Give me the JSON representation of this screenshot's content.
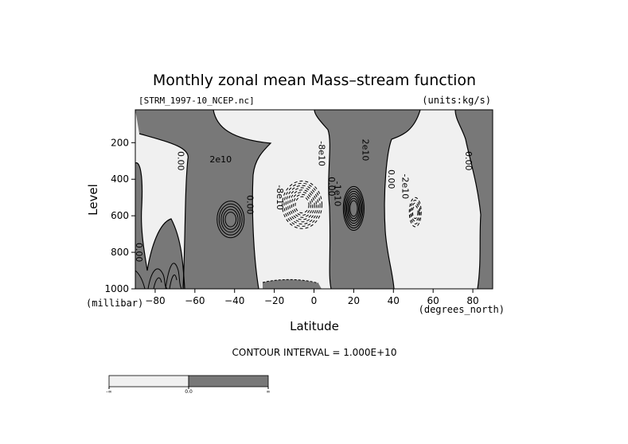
{
  "chart_data": {
    "type": "contour",
    "title": "Monthly zonal mean Mass–stream function",
    "subtitle_left": "[STRM_1997-10_NCEP.nc]",
    "subtitle_right": "(units:kg/s)",
    "xlabel": "Latitude",
    "ylabel": "Level",
    "x_unit": "(degrees_north)",
    "y_unit": "(millibar)",
    "xlim": [
      -90,
      90
    ],
    "ylim": [
      1000,
      20
    ],
    "x_ticks": [
      -80,
      -60,
      -40,
      -20,
      0,
      20,
      40,
      60,
      80
    ],
    "x_tick_labels": [
      "−80",
      "−60",
      "−40",
      "−20",
      "0",
      "20",
      "40",
      "60",
      "80"
    ],
    "y_ticks": [
      200,
      400,
      600,
      800,
      1000
    ],
    "y_tick_labels": [
      "200",
      "400",
      "600",
      "800",
      "1000"
    ],
    "contour_interval_text": "CONTOUR INTERVAL = 1.000E+10",
    "contour_interval": 10000000000.0,
    "positive_fill_color": "#787878",
    "negative_fill_color": "#f0f0f0",
    "colorbar_labels": [
      "-∞",
      "0.0",
      "∞"
    ],
    "contour_labels": [
      {
        "text": "0.00",
        "lat": -67,
        "lev": 300
      },
      {
        "text": "2e10",
        "lat": -47,
        "lev": 290
      },
      {
        "text": "0.00",
        "lat": -32,
        "lev": 540
      },
      {
        "text": "-8e10",
        "lat": -17,
        "lev": 500
      },
      {
        "text": "-8e10",
        "lat": 4,
        "lev": 260
      },
      {
        "text": "0.00",
        "lat": 9,
        "lev": 440
      },
      {
        "text": "-1e10",
        "lat": 12,
        "lev": 480
      },
      {
        "text": "2e10",
        "lat": 26,
        "lev": 240
      },
      {
        "text": "0.00",
        "lat": 39,
        "lev": 400
      },
      {
        "text": "-2e10",
        "lat": 46,
        "lev": 440
      },
      {
        "text": "0.00",
        "lat": 78,
        "lev": 300
      },
      {
        "text": "0.00",
        "lat": -88,
        "lev": 800
      }
    ],
    "cells": [
      {
        "sign": "positive",
        "lat": -42,
        "lev": 620,
        "rx": 6.5,
        "ry": 100,
        "levels": 5
      },
      {
        "sign": "negative",
        "lat": -6,
        "lev": 540,
        "rx": 10,
        "ry": 130,
        "levels": 8
      },
      {
        "sign": "positive",
        "lat": 20,
        "lev": 560,
        "rx": 5,
        "ry": 120,
        "levels": 7
      },
      {
        "sign": "negative",
        "lat": 51,
        "lev": 580,
        "rx": 3,
        "ry": 80,
        "levels": 4
      }
    ]
  }
}
